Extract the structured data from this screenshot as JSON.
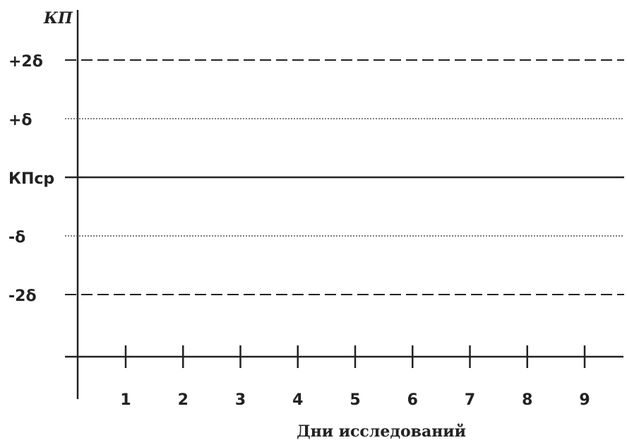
{
  "chart_data": {
    "type": "line",
    "ylabel": "КП",
    "xlabel": "Дни исследований",
    "categories": [
      "1",
      "2",
      "3",
      "4",
      "5",
      "6",
      "7",
      "8",
      "9"
    ],
    "levels": [
      {
        "label": "+2δ",
        "value": 2,
        "style": "dashed"
      },
      {
        "label": "+δ",
        "value": 1,
        "style": "dotted"
      },
      {
        "label": "КПср",
        "value": 0,
        "style": "solid"
      },
      {
        "label": "-δ",
        "value": -1,
        "style": "dotted"
      },
      {
        "label": "-2δ",
        "value": -2,
        "style": "dashed"
      }
    ],
    "series": [],
    "grid": false,
    "colors": {
      "ink": "#222222",
      "dotted": "#555555"
    }
  }
}
